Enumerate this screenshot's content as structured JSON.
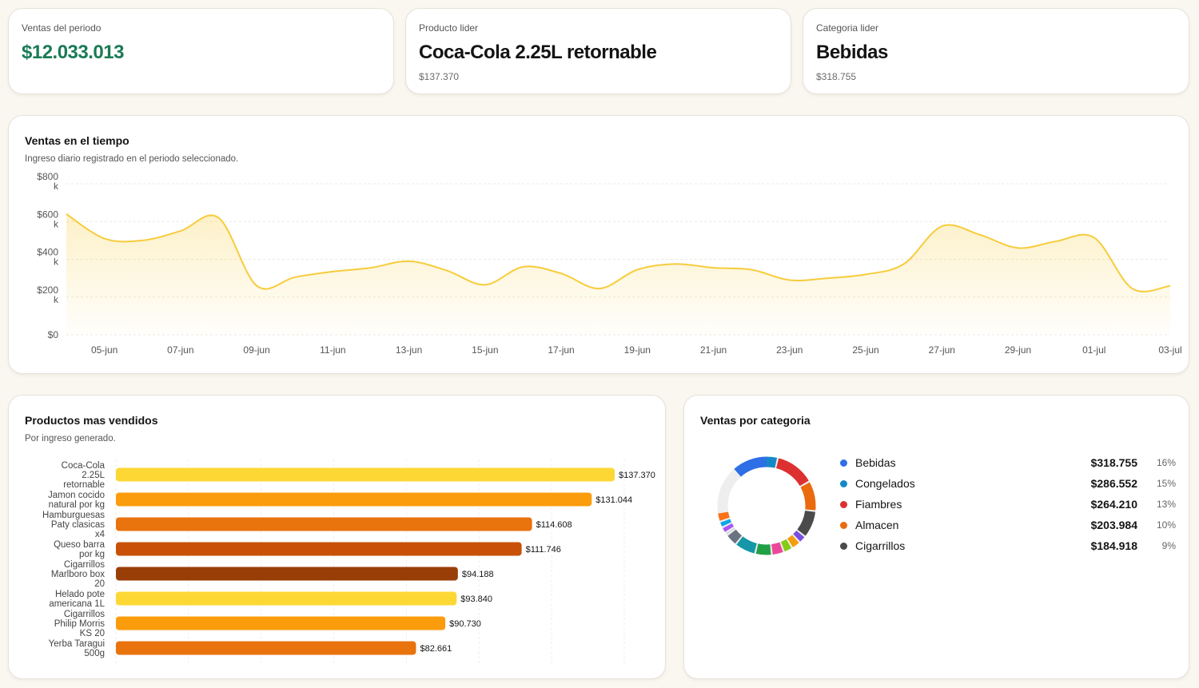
{
  "kpis": [
    {
      "label": "Ventas del periodo",
      "value": "$12.033.013",
      "sub": ""
    },
    {
      "label": "Producto lider",
      "value": "Coca-Cola 2.25L retornable",
      "sub": "$137.370"
    },
    {
      "label": "Categoria lider",
      "value": "Bebidas",
      "sub": "$318.755"
    }
  ],
  "colors": {
    "accent_green": "#1a7a55",
    "line": "#f7cc3b",
    "bars": [
      "#fdd835",
      "#fb9c0c",
      "#e9730d",
      "#c85107",
      "#9a3e08",
      "#fdd835",
      "#fb9c0c",
      "#e9730d"
    ]
  },
  "time_panel": {
    "title": "Ventas en el tiempo",
    "subtitle": "Ingreso diario registrado en el periodo seleccionado."
  },
  "products_panel": {
    "title": "Productos mas vendidos",
    "subtitle": "Por ingreso generado."
  },
  "category_panel": {
    "title": "Ventas por categoria",
    "legend": [
      {
        "name": "Bebidas",
        "value": "$318.755",
        "pct": "16%",
        "color": "#2f6fe6"
      },
      {
        "name": "Congelados",
        "value": "$286.552",
        "pct": "15%",
        "color": "#1589c8"
      },
      {
        "name": "Fiambres",
        "value": "$264.210",
        "pct": "13%",
        "color": "#dd3030"
      },
      {
        "name": "Almacen",
        "value": "$203.984",
        "pct": "10%",
        "color": "#ea6a10"
      },
      {
        "name": "Cigarrillos",
        "value": "$184.918",
        "pct": "9%",
        "color": "#4b4b4b"
      }
    ]
  },
  "chart_data": [
    {
      "type": "area",
      "title": "Ventas en el tiempo",
      "y_tick_labels": [
        "$800 k",
        "$600 k",
        "$400 k",
        "$200 k",
        "$0"
      ],
      "y_ticks": [
        800000,
        600000,
        400000,
        200000,
        0
      ],
      "ylim": [
        0,
        800000
      ],
      "x_tick_labels": [
        "05-jun",
        "07-jun",
        "09-jun",
        "11-jun",
        "13-jun",
        "15-jun",
        "17-jun",
        "19-jun",
        "21-jun",
        "23-jun",
        "25-jun",
        "27-jun",
        "29-jun",
        "01-jul",
        "03-jul"
      ],
      "x": [
        "04-jun",
        "05-jun",
        "06-jun",
        "07-jun",
        "08-jun",
        "09-jun",
        "10-jun",
        "11-jun",
        "12-jun",
        "13-jun",
        "14-jun",
        "15-jun",
        "16-jun",
        "17-jun",
        "18-jun",
        "19-jun",
        "20-jun",
        "21-jun",
        "22-jun",
        "23-jun",
        "24-jun",
        "25-jun",
        "26-jun",
        "27-jun",
        "28-jun",
        "29-jun",
        "30-jun",
        "01-jul",
        "02-jul",
        "03-jul"
      ],
      "values": [
        640000,
        510000,
        500000,
        550000,
        620000,
        260000,
        305000,
        335000,
        355000,
        390000,
        340000,
        265000,
        360000,
        325000,
        245000,
        345000,
        375000,
        355000,
        345000,
        290000,
        300000,
        320000,
        375000,
        575000,
        530000,
        460000,
        495000,
        515000,
        245000,
        260000
      ],
      "grid": true
    },
    {
      "type": "bar",
      "orientation": "horizontal",
      "title": "Productos mas vendidos",
      "categories": [
        "Coca-Cola 2.25L retornable",
        "Jamon cocido natural por kg",
        "Hamburguesas Paty clasicas x4",
        "Queso barra por kg",
        "Cigarrillos Marlboro box 20",
        "Helado pote americana 1L",
        "Cigarrillos Philip Morris KS 20",
        "Yerba Taragui 500g"
      ],
      "category_lines": [
        [
          "Coca-Cola",
          "2.25L",
          "retornable"
        ],
        [
          "Jamon cocido",
          "natural por kg"
        ],
        [
          "Hamburguesas",
          "Paty clasicas",
          "x4"
        ],
        [
          "Queso barra",
          "por kg"
        ],
        [
          "Cigarrillos",
          "Marlboro box",
          "20"
        ],
        [
          "Helado pote",
          "americana 1L"
        ],
        [
          "Cigarrillos",
          "Philip Morris",
          "KS 20"
        ],
        [
          "Yerba Taragui",
          "500g"
        ]
      ],
      "values": [
        137370,
        131044,
        114608,
        111746,
        94188,
        93840,
        90730,
        82661
      ],
      "value_labels": [
        "$137.370",
        "$131.044",
        "$114.608",
        "$111.746",
        "$94.188",
        "$93.840",
        "$90.730",
        "$82.661"
      ],
      "xlim": [
        0,
        140000
      ]
    },
    {
      "type": "pie",
      "title": "Ventas por categoria",
      "donut": true,
      "labels": [
        "Bebidas",
        "Congelados",
        "Fiambres",
        "Almacen",
        "Cigarrillos"
      ],
      "values": [
        318755,
        286552,
        264210,
        203984,
        184918
      ],
      "percentages": [
        16,
        15,
        13,
        10,
        9
      ],
      "other_segments": [
        {
          "color": "#7b4de0",
          "pct": 2.5
        },
        {
          "color": "#f59e0b",
          "pct": 3
        },
        {
          "color": "#84cc16",
          "pct": 3
        },
        {
          "color": "#ec4899",
          "pct": 4
        },
        {
          "color": "#22a045",
          "pct": 5.5
        },
        {
          "color": "#1597a8",
          "pct": 7
        },
        {
          "color": "#6b7280",
          "pct": 4
        },
        {
          "color": "#d1d5db",
          "pct": 1
        },
        {
          "color": "#a855f7",
          "pct": 2
        },
        {
          "color": "#0ea5e9",
          "pct": 2
        },
        {
          "color": "#f97316",
          "pct": 3
        }
      ]
    }
  ]
}
